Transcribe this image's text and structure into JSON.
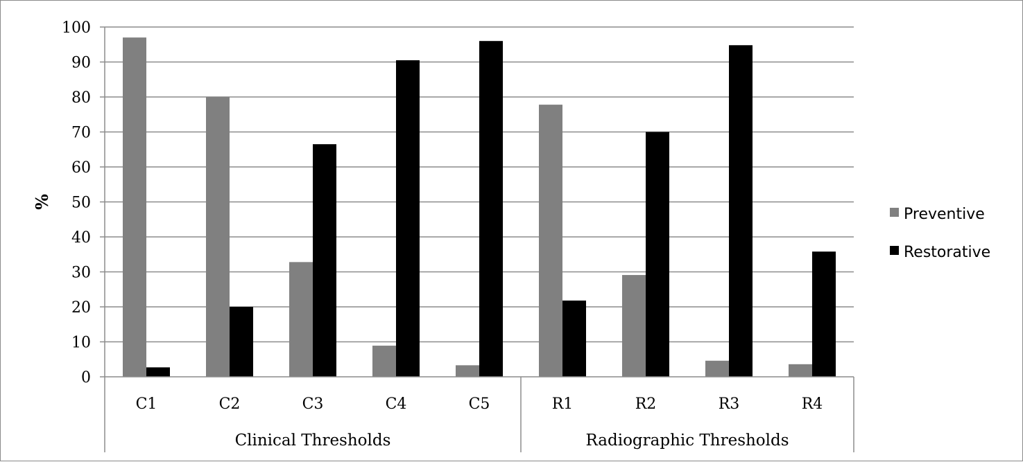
{
  "chart_data": {
    "type": "bar",
    "title": "",
    "ylabel": "%",
    "xlabel": "",
    "ylim": [
      0,
      100
    ],
    "yticks": [
      0,
      10,
      20,
      30,
      40,
      50,
      60,
      70,
      80,
      90,
      100
    ],
    "grid": true,
    "legend_position": "right",
    "categories": [
      "C1",
      "C2",
      "C3",
      "C4",
      "C5",
      "R1",
      "R2",
      "R3",
      "R4"
    ],
    "groups": [
      {
        "label": "Clinical Thresholds",
        "categories": [
          "C1",
          "C2",
          "C3",
          "C4",
          "C5"
        ]
      },
      {
        "label": "Radiographic Thresholds",
        "categories": [
          "R1",
          "R2",
          "R3",
          "R4"
        ]
      }
    ],
    "series": [
      {
        "name": "Preventive",
        "color": "#808080",
        "values": [
          97,
          80,
          32.8,
          8.9,
          3.3,
          77.8,
          29.1,
          4.6,
          3.6
        ]
      },
      {
        "name": "Restorative",
        "color": "#000000",
        "values": [
          2.7,
          20,
          66.5,
          90.5,
          96,
          21.8,
          70,
          94.8,
          35.8
        ]
      }
    ]
  }
}
